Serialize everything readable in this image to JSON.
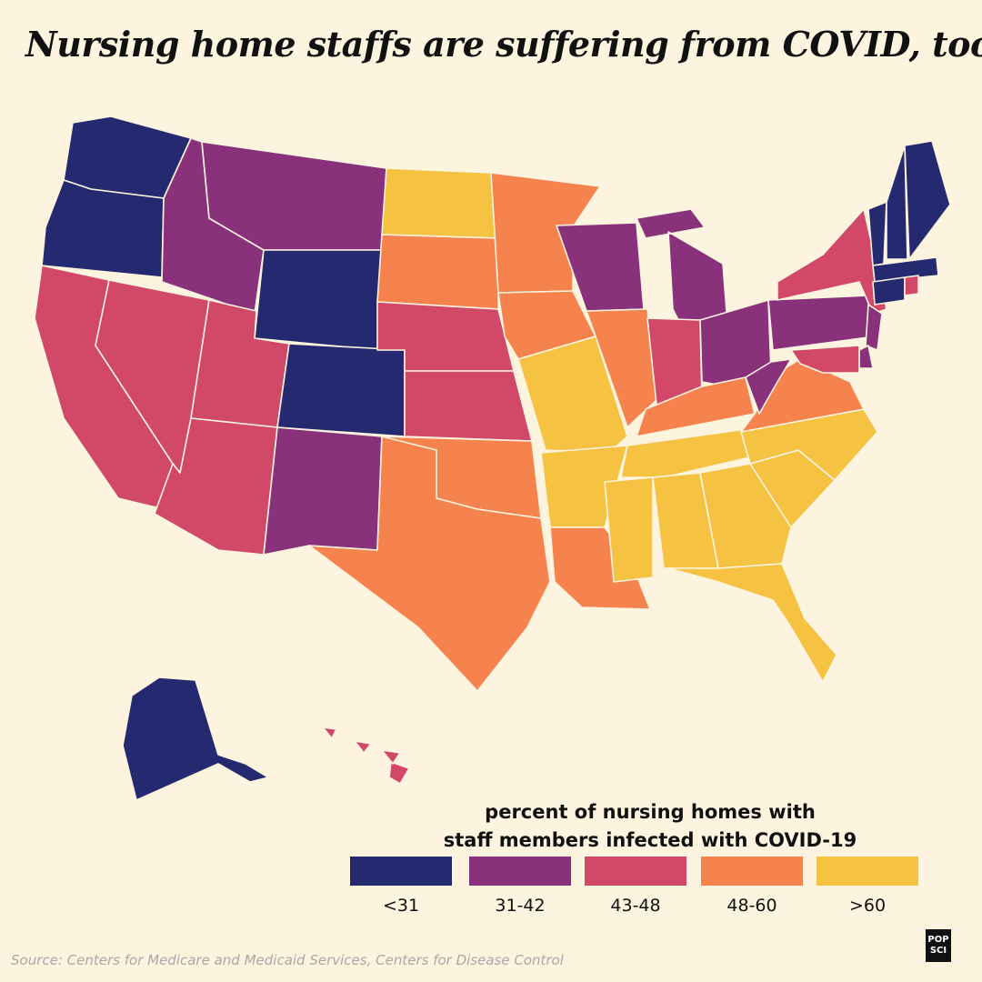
{
  "title": "Nursing home staffs are suffering from COVID, too",
  "legend": {
    "title_lines": [
      "percent of nursing homes with",
      "staff members infected with COVID-19"
    ],
    "bins": [
      {
        "label": "<31",
        "color": "#252a70"
      },
      {
        "label": "31-42",
        "color": "#89317b"
      },
      {
        "label": "43-48",
        "color": "#d14869"
      },
      {
        "label": "48-60",
        "color": "#f6834e"
      },
      {
        "label": ">60",
        "color": "#f5c241"
      }
    ]
  },
  "states": [
    {
      "name": "WA",
      "bin": 0
    },
    {
      "name": "OR",
      "bin": 0
    },
    {
      "name": "CA",
      "bin": 2
    },
    {
      "name": "NV",
      "bin": 2
    },
    {
      "name": "ID",
      "bin": 1
    },
    {
      "name": "MT",
      "bin": 1
    },
    {
      "name": "WY",
      "bin": 0
    },
    {
      "name": "UT",
      "bin": 2
    },
    {
      "name": "CO",
      "bin": 0
    },
    {
      "name": "AZ",
      "bin": 2
    },
    {
      "name": "NM",
      "bin": 1
    },
    {
      "name": "ND",
      "bin": 4
    },
    {
      "name": "SD",
      "bin": 3
    },
    {
      "name": "NE",
      "bin": 2
    },
    {
      "name": "KS",
      "bin": 2
    },
    {
      "name": "OK",
      "bin": 3
    },
    {
      "name": "TX",
      "bin": 3
    },
    {
      "name": "MN",
      "bin": 3
    },
    {
      "name": "IA",
      "bin": 3
    },
    {
      "name": "MO",
      "bin": 4
    },
    {
      "name": "AR",
      "bin": 4
    },
    {
      "name": "LA",
      "bin": 3
    },
    {
      "name": "WI",
      "bin": 1
    },
    {
      "name": "MI",
      "bin": 1
    },
    {
      "name": "IL",
      "bin": 3
    },
    {
      "name": "IN",
      "bin": 2
    },
    {
      "name": "OH",
      "bin": 1
    },
    {
      "name": "KY",
      "bin": 3
    },
    {
      "name": "TN",
      "bin": 4
    },
    {
      "name": "MS",
      "bin": 4
    },
    {
      "name": "AL",
      "bin": 4
    },
    {
      "name": "GA",
      "bin": 4
    },
    {
      "name": "FL",
      "bin": 4
    },
    {
      "name": "SC",
      "bin": 4
    },
    {
      "name": "NC",
      "bin": 4
    },
    {
      "name": "VA",
      "bin": 3
    },
    {
      "name": "WV",
      "bin": 1
    },
    {
      "name": "PA",
      "bin": 1
    },
    {
      "name": "NY",
      "bin": 2
    },
    {
      "name": "NJ",
      "bin": 1
    },
    {
      "name": "DE",
      "bin": 1
    },
    {
      "name": "MD",
      "bin": 2
    },
    {
      "name": "VT",
      "bin": 0
    },
    {
      "name": "NH",
      "bin": 0
    },
    {
      "name": "ME",
      "bin": 0
    },
    {
      "name": "MA",
      "bin": 0
    },
    {
      "name": "CT",
      "bin": 0
    },
    {
      "name": "RI",
      "bin": 2
    },
    {
      "name": "AK",
      "bin": 0
    },
    {
      "name": "HI",
      "bin": 2
    }
  ],
  "source": "Source: Centers for Medicare and Medicaid Services, Centers for Disease Control",
  "logo_lines": [
    "POP",
    "SCI"
  ]
}
